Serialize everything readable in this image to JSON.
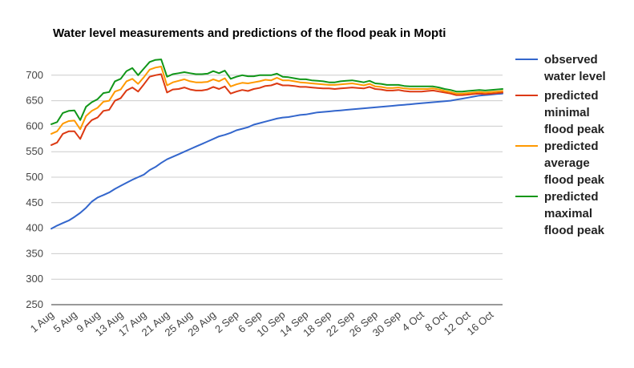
{
  "chart_data": {
    "type": "line",
    "title": "Water level measurements and predictions of the flood peak in Mopti",
    "xlabel": "",
    "ylabel": "",
    "ylim": [
      250,
      750
    ],
    "yticks": [
      250,
      300,
      350,
      400,
      450,
      500,
      550,
      600,
      650,
      700
    ],
    "x_range_days": [
      1,
      79
    ],
    "xtick_days": [
      1,
      5,
      9,
      13,
      17,
      21,
      25,
      29,
      33,
      37,
      41,
      45,
      49,
      53,
      57,
      61,
      65,
      69,
      73,
      77
    ],
    "xtick_labels": [
      "1 Aug",
      "5 Aug",
      "9 Aug",
      "13 Aug",
      "17 Aug",
      "21 Aug",
      "25 Aug",
      "29 Aug",
      "2 Sep",
      "6 Sep",
      "10 Sep",
      "14 Sep",
      "18 Sep",
      "22 Sep",
      "26 Sep",
      "30 Sep",
      "4 Oct",
      "8 Oct",
      "12 Oct",
      "16 Oct"
    ],
    "x_unit_note": "",
    "grid": true,
    "legend_position": "right",
    "series": [
      {
        "name": "observed water level",
        "legend_lines": [
          "observed",
          "water level"
        ],
        "color": "#3366cc",
        "points": [
          [
            1,
            399
          ],
          [
            2,
            405
          ],
          [
            3,
            410
          ],
          [
            4,
            415
          ],
          [
            5,
            422
          ],
          [
            6,
            430
          ],
          [
            7,
            440
          ],
          [
            8,
            452
          ],
          [
            9,
            460
          ],
          [
            10,
            465
          ],
          [
            11,
            470
          ],
          [
            12,
            477
          ],
          [
            13,
            483
          ],
          [
            14,
            489
          ],
          [
            15,
            495
          ],
          [
            16,
            500
          ],
          [
            17,
            505
          ],
          [
            18,
            514
          ],
          [
            19,
            520
          ],
          [
            20,
            528
          ],
          [
            21,
            535
          ],
          [
            22,
            540
          ],
          [
            23,
            545
          ],
          [
            24,
            550
          ],
          [
            25,
            555
          ],
          [
            26,
            560
          ],
          [
            27,
            565
          ],
          [
            28,
            570
          ],
          [
            29,
            575
          ],
          [
            30,
            580
          ],
          [
            31,
            583
          ],
          [
            32,
            587
          ],
          [
            33,
            592
          ],
          [
            34,
            595
          ],
          [
            35,
            598
          ],
          [
            36,
            603
          ],
          [
            37,
            606
          ],
          [
            38,
            609
          ],
          [
            39,
            612
          ],
          [
            40,
            615
          ],
          [
            41,
            617
          ],
          [
            42,
            618
          ],
          [
            43,
            620
          ],
          [
            44,
            622
          ],
          [
            45,
            623
          ],
          [
            46,
            625
          ],
          [
            47,
            627
          ],
          [
            48,
            628
          ],
          [
            49,
            629
          ],
          [
            50,
            630
          ],
          [
            51,
            631
          ],
          [
            52,
            632
          ],
          [
            53,
            633
          ],
          [
            54,
            634
          ],
          [
            55,
            635
          ],
          [
            56,
            636
          ],
          [
            57,
            637
          ],
          [
            58,
            638
          ],
          [
            59,
            639
          ],
          [
            60,
            640
          ],
          [
            61,
            641
          ],
          [
            62,
            642
          ],
          [
            63,
            643
          ],
          [
            64,
            644
          ],
          [
            65,
            645
          ],
          [
            66,
            646
          ],
          [
            67,
            647
          ],
          [
            68,
            648
          ],
          [
            69,
            649
          ],
          [
            70,
            650
          ],
          [
            71,
            652
          ],
          [
            72,
            654
          ],
          [
            73,
            656
          ],
          [
            74,
            658
          ],
          [
            75,
            660
          ],
          [
            76,
            661
          ],
          [
            77,
            662
          ],
          [
            78,
            663
          ],
          [
            79,
            664
          ]
        ]
      },
      {
        "name": "predicted minimal flood peak",
        "legend_lines": [
          "predicted",
          "minimal",
          "flood peak"
        ],
        "color": "#dc3912",
        "points": [
          [
            1,
            563
          ],
          [
            2,
            568
          ],
          [
            3,
            585
          ],
          [
            4,
            590
          ],
          [
            5,
            590
          ],
          [
            6,
            575
          ],
          [
            7,
            600
          ],
          [
            8,
            612
          ],
          [
            9,
            617
          ],
          [
            10,
            630
          ],
          [
            11,
            632
          ],
          [
            12,
            650
          ],
          [
            13,
            655
          ],
          [
            14,
            670
          ],
          [
            15,
            676
          ],
          [
            16,
            668
          ],
          [
            17,
            682
          ],
          [
            18,
            697
          ],
          [
            19,
            700
          ],
          [
            20,
            702
          ],
          [
            21,
            666
          ],
          [
            22,
            672
          ],
          [
            23,
            673
          ],
          [
            24,
            676
          ],
          [
            25,
            672
          ],
          [
            26,
            670
          ],
          [
            27,
            670
          ],
          [
            28,
            672
          ],
          [
            29,
            677
          ],
          [
            30,
            673
          ],
          [
            31,
            678
          ],
          [
            32,
            664
          ],
          [
            33,
            668
          ],
          [
            34,
            671
          ],
          [
            35,
            669
          ],
          [
            36,
            673
          ],
          [
            37,
            675
          ],
          [
            38,
            679
          ],
          [
            39,
            680
          ],
          [
            40,
            684
          ],
          [
            41,
            680
          ],
          [
            42,
            680
          ],
          [
            43,
            679
          ],
          [
            44,
            677
          ],
          [
            45,
            677
          ],
          [
            46,
            676
          ],
          [
            47,
            675
          ],
          [
            48,
            674
          ],
          [
            49,
            674
          ],
          [
            50,
            673
          ],
          [
            51,
            674
          ],
          [
            52,
            675
          ],
          [
            53,
            676
          ],
          [
            54,
            675
          ],
          [
            55,
            674
          ],
          [
            56,
            677
          ],
          [
            57,
            673
          ],
          [
            58,
            672
          ],
          [
            59,
            670
          ],
          [
            60,
            670
          ],
          [
            61,
            671
          ],
          [
            62,
            669
          ],
          [
            63,
            668
          ],
          [
            64,
            668
          ],
          [
            65,
            668
          ],
          [
            66,
            669
          ],
          [
            67,
            670
          ],
          [
            68,
            668
          ],
          [
            69,
            666
          ],
          [
            70,
            664
          ],
          [
            71,
            661
          ],
          [
            72,
            661
          ],
          [
            73,
            662
          ],
          [
            74,
            663
          ],
          [
            75,
            664
          ],
          [
            76,
            663
          ],
          [
            77,
            664
          ],
          [
            78,
            665
          ],
          [
            79,
            666
          ]
        ]
      },
      {
        "name": "predicted average flood peak",
        "legend_lines": [
          "predicted",
          "average",
          "flood peak"
        ],
        "color": "#ff9900",
        "points": [
          [
            1,
            585
          ],
          [
            2,
            590
          ],
          [
            3,
            605
          ],
          [
            4,
            610
          ],
          [
            5,
            611
          ],
          [
            6,
            594
          ],
          [
            7,
            620
          ],
          [
            8,
            630
          ],
          [
            9,
            636
          ],
          [
            10,
            648
          ],
          [
            11,
            650
          ],
          [
            12,
            668
          ],
          [
            13,
            672
          ],
          [
            14,
            688
          ],
          [
            15,
            693
          ],
          [
            16,
            683
          ],
          [
            17,
            696
          ],
          [
            18,
            711
          ],
          [
            19,
            715
          ],
          [
            20,
            717
          ],
          [
            21,
            680
          ],
          [
            22,
            686
          ],
          [
            23,
            689
          ],
          [
            24,
            692
          ],
          [
            25,
            688
          ],
          [
            26,
            686
          ],
          [
            27,
            686
          ],
          [
            28,
            687
          ],
          [
            29,
            692
          ],
          [
            30,
            688
          ],
          [
            31,
            694
          ],
          [
            32,
            678
          ],
          [
            33,
            682
          ],
          [
            34,
            685
          ],
          [
            35,
            684
          ],
          [
            36,
            686
          ],
          [
            37,
            688
          ],
          [
            38,
            691
          ],
          [
            39,
            690
          ],
          [
            40,
            695
          ],
          [
            41,
            690
          ],
          [
            42,
            690
          ],
          [
            43,
            688
          ],
          [
            44,
            686
          ],
          [
            45,
            685
          ],
          [
            46,
            684
          ],
          [
            47,
            683
          ],
          [
            48,
            682
          ],
          [
            49,
            681
          ],
          [
            50,
            681
          ],
          [
            51,
            682
          ],
          [
            52,
            683
          ],
          [
            53,
            684
          ],
          [
            54,
            682
          ],
          [
            55,
            680
          ],
          [
            56,
            683
          ],
          [
            57,
            678
          ],
          [
            58,
            677
          ],
          [
            59,
            675
          ],
          [
            60,
            675
          ],
          [
            61,
            676
          ],
          [
            62,
            674
          ],
          [
            63,
            673
          ],
          [
            64,
            673
          ],
          [
            65,
            673
          ],
          [
            66,
            673
          ],
          [
            67,
            674
          ],
          [
            68,
            672
          ],
          [
            69,
            669
          ],
          [
            70,
            667
          ],
          [
            71,
            664
          ],
          [
            72,
            664
          ],
          [
            73,
            665
          ],
          [
            74,
            666
          ],
          [
            75,
            667
          ],
          [
            76,
            666
          ],
          [
            77,
            667
          ],
          [
            78,
            668
          ],
          [
            79,
            669
          ]
        ]
      },
      {
        "name": "predicted maximal flood peak",
        "legend_lines": [
          "predicted",
          "maximal",
          "flood peak"
        ],
        "color": "#109618",
        "points": [
          [
            1,
            604
          ],
          [
            2,
            608
          ],
          [
            3,
            626
          ],
          [
            4,
            630
          ],
          [
            5,
            631
          ],
          [
            6,
            612
          ],
          [
            7,
            638
          ],
          [
            8,
            647
          ],
          [
            9,
            653
          ],
          [
            10,
            665
          ],
          [
            11,
            667
          ],
          [
            12,
            688
          ],
          [
            13,
            693
          ],
          [
            14,
            708
          ],
          [
            15,
            714
          ],
          [
            16,
            700
          ],
          [
            17,
            713
          ],
          [
            18,
            726
          ],
          [
            19,
            730
          ],
          [
            20,
            731
          ],
          [
            21,
            697
          ],
          [
            22,
            702
          ],
          [
            23,
            704
          ],
          [
            24,
            706
          ],
          [
            25,
            704
          ],
          [
            26,
            702
          ],
          [
            27,
            702
          ],
          [
            28,
            703
          ],
          [
            29,
            708
          ],
          [
            30,
            704
          ],
          [
            31,
            709
          ],
          [
            32,
            693
          ],
          [
            33,
            697
          ],
          [
            34,
            700
          ],
          [
            35,
            698
          ],
          [
            36,
            698
          ],
          [
            37,
            700
          ],
          [
            38,
            700
          ],
          [
            39,
            700
          ],
          [
            40,
            703
          ],
          [
            41,
            697
          ],
          [
            42,
            696
          ],
          [
            43,
            694
          ],
          [
            44,
            692
          ],
          [
            45,
            692
          ],
          [
            46,
            690
          ],
          [
            47,
            689
          ],
          [
            48,
            688
          ],
          [
            49,
            686
          ],
          [
            50,
            686
          ],
          [
            51,
            688
          ],
          [
            52,
            689
          ],
          [
            53,
            690
          ],
          [
            54,
            688
          ],
          [
            55,
            686
          ],
          [
            56,
            689
          ],
          [
            57,
            684
          ],
          [
            58,
            683
          ],
          [
            59,
            681
          ],
          [
            60,
            681
          ],
          [
            61,
            681
          ],
          [
            62,
            679
          ],
          [
            63,
            678
          ],
          [
            64,
            678
          ],
          [
            65,
            678
          ],
          [
            66,
            678
          ],
          [
            67,
            678
          ],
          [
            68,
            676
          ],
          [
            69,
            673
          ],
          [
            70,
            671
          ],
          [
            71,
            668
          ],
          [
            72,
            668
          ],
          [
            73,
            669
          ],
          [
            74,
            670
          ],
          [
            75,
            671
          ],
          [
            76,
            670
          ],
          [
            77,
            671
          ],
          [
            78,
            672
          ],
          [
            79,
            673
          ]
        ]
      }
    ]
  }
}
